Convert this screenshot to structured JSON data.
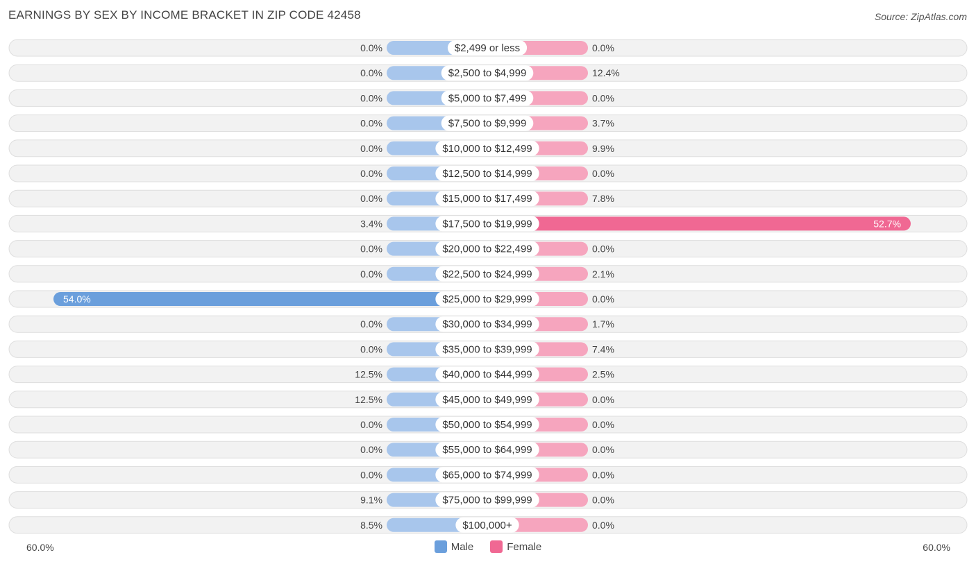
{
  "chart_data": {
    "type": "bar",
    "orientation": "diverging-horizontal",
    "title": "EARNINGS BY SEX BY INCOME BRACKET IN ZIP CODE 42458",
    "source": "Source: ZipAtlas.com",
    "categories": [
      "$2,499 or less",
      "$2,500 to $4,999",
      "$5,000 to $7,499",
      "$7,500 to $9,999",
      "$10,000 to $12,499",
      "$12,500 to $14,999",
      "$15,000 to $17,499",
      "$17,500 to $19,999",
      "$20,000 to $22,499",
      "$22,500 to $24,999",
      "$25,000 to $29,999",
      "$30,000 to $34,999",
      "$35,000 to $39,999",
      "$40,000 to $44,999",
      "$45,000 to $49,999",
      "$50,000 to $54,999",
      "$55,000 to $64,999",
      "$65,000 to $74,999",
      "$75,000 to $99,999",
      "$100,000+"
    ],
    "series": [
      {
        "name": "Male",
        "color": "#6b9fdc",
        "light_color": "#a8c6ec",
        "values": [
          0.0,
          0.0,
          0.0,
          0.0,
          0.0,
          0.0,
          0.0,
          3.4,
          0.0,
          0.0,
          54.0,
          0.0,
          0.0,
          12.5,
          12.5,
          0.0,
          0.0,
          0.0,
          9.1,
          8.5
        ],
        "labels": [
          "0.0%",
          "0.0%",
          "0.0%",
          "0.0%",
          "0.0%",
          "0.0%",
          "0.0%",
          "3.4%",
          "0.0%",
          "0.0%",
          "54.0%",
          "0.0%",
          "0.0%",
          "12.5%",
          "12.5%",
          "0.0%",
          "0.0%",
          "0.0%",
          "9.1%",
          "8.5%"
        ]
      },
      {
        "name": "Female",
        "color": "#f06893",
        "light_color": "#f6a5be",
        "values": [
          0.0,
          12.4,
          0.0,
          3.7,
          9.9,
          0.0,
          7.8,
          52.7,
          0.0,
          2.1,
          0.0,
          1.7,
          7.4,
          2.5,
          0.0,
          0.0,
          0.0,
          0.0,
          0.0,
          0.0
        ],
        "labels": [
          "0.0%",
          "12.4%",
          "0.0%",
          "3.7%",
          "9.9%",
          "0.0%",
          "7.8%",
          "52.7%",
          "0.0%",
          "2.1%",
          "0.0%",
          "1.7%",
          "7.4%",
          "2.5%",
          "0.0%",
          "0.0%",
          "0.0%",
          "0.0%",
          "0.0%",
          "0.0%"
        ]
      }
    ],
    "xlim": [
      -60,
      60
    ],
    "axis_labels": {
      "left": "60.0%",
      "right": "60.0%"
    },
    "legend": [
      "Male",
      "Female"
    ],
    "legend_position": "bottom-center"
  }
}
